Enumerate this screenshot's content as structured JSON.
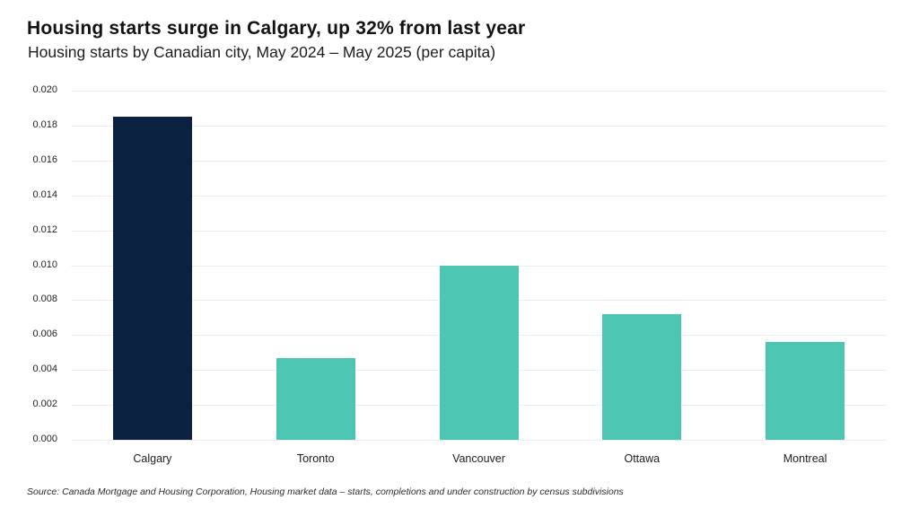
{
  "header": {
    "title": "Housing starts surge in Calgary, up 32% from last year",
    "subtitle": "Housing starts by Canadian city, May 2024 – May 2025 (per capita)"
  },
  "chart_data": {
    "type": "bar",
    "title": "Housing starts surge in Calgary, up 32% from last year",
    "subtitle": "Housing starts by Canadian city, May 2024 – May 2025 (per capita)",
    "categories": [
      "Calgary",
      "Toronto",
      "Vancouver",
      "Ottawa",
      "Montreal"
    ],
    "values": [
      0.0185,
      0.0047,
      0.01,
      0.0072,
      0.0056
    ],
    "bar_colors": [
      "#0a2240",
      "#4cc5b3",
      "#4cc5b3",
      "#4cc5b3",
      "#4cc5b3"
    ],
    "xlabel": "",
    "ylabel": "",
    "ylim": [
      0,
      0.02
    ],
    "ytick_step": 0.002,
    "ytick_labels": [
      "0.000",
      "0.002",
      "0.004",
      "0.006",
      "0.008",
      "0.010",
      "0.012",
      "0.014",
      "0.016",
      "0.018",
      "0.020"
    ],
    "grid": true,
    "gridline_color": "#ececec",
    "legend": "none"
  },
  "footer": {
    "source": "Source: Canada Mortgage and Housing Corporation, Housing market data – starts, completions and under construction by census subdivisions"
  }
}
